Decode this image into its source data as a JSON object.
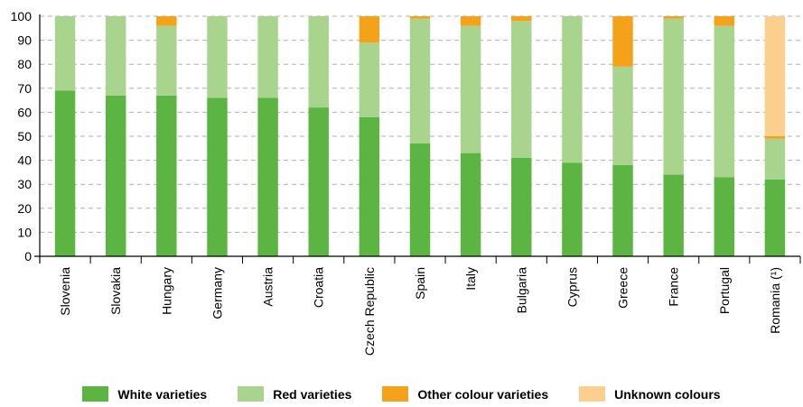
{
  "chart_data": {
    "type": "bar",
    "stacked": true,
    "categories": [
      "Slovenia",
      "Slovakia",
      "Hungary",
      "Germany",
      "Austria",
      "Croatia",
      "Czech Republic",
      "Spain",
      "Italy",
      "Bulgaria",
      "Cyprus",
      "Greece",
      "France",
      "Portugal",
      "Romania (¹)"
    ],
    "series": [
      {
        "name": "White varieties",
        "color": "#5cb543",
        "values": [
          69,
          67,
          67,
          66,
          66,
          62,
          58,
          47,
          43,
          41,
          39,
          38,
          34,
          33,
          32
        ]
      },
      {
        "name": "Red varieties",
        "color": "#a9d48e",
        "values": [
          31,
          33,
          29,
          34,
          34,
          38,
          31,
          52,
          53,
          57,
          61,
          41,
          65,
          63,
          17
        ]
      },
      {
        "name": "Other colour varieties",
        "color": "#f5a21b",
        "values": [
          0,
          0,
          4,
          0,
          0,
          0,
          11,
          1,
          4,
          2,
          0,
          21,
          1,
          4,
          1
        ]
      },
      {
        "name": "Unknown colours",
        "color": "#fbcf8e",
        "values": [
          0,
          0,
          0,
          0,
          0,
          0,
          0,
          0,
          0,
          0,
          0,
          0,
          0,
          0,
          50
        ]
      }
    ],
    "ylim": [
      0,
      100
    ],
    "yticks": [
      0,
      10,
      20,
      30,
      40,
      50,
      60,
      70,
      80,
      90,
      100
    ],
    "grid": true,
    "legend_position": "bottom"
  }
}
